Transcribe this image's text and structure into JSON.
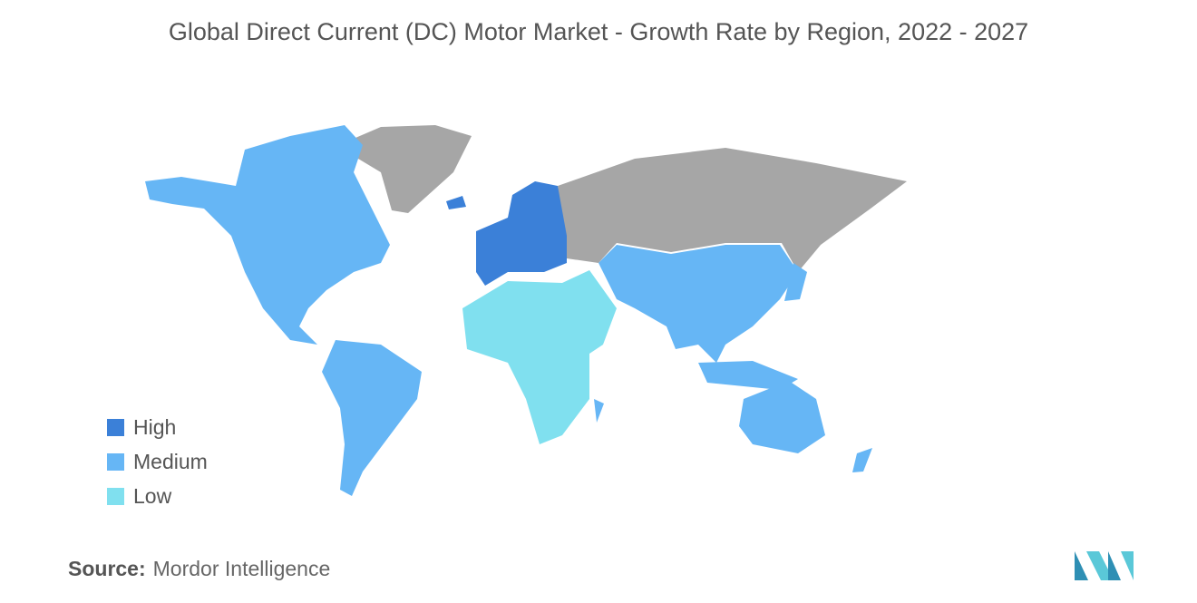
{
  "title": "Global Direct Current (DC) Motor Market - Growth Rate by Region, 2022 - 2027",
  "legend": [
    {
      "label": "High",
      "color": "#3b80d8"
    },
    {
      "label": "Medium",
      "color": "#66b6f5"
    },
    {
      "label": "Low",
      "color": "#80e0ef"
    }
  ],
  "source": {
    "label": "Source:",
    "text": "Mordor Intelligence"
  }
}
